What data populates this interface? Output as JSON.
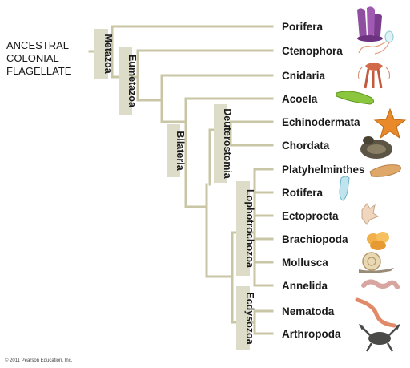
{
  "root": {
    "lines": [
      "ANCESTRAL",
      "COLONIAL",
      "FLAGELLATE"
    ]
  },
  "clades": {
    "metazoa": "Metazoa",
    "eumetazoa": "Eumetazoa",
    "bilateria": "Bilateria",
    "deuterostomia": "Deuterostomia",
    "lophotrochozoa": "Lophotrochozoa",
    "ecdysozoa": "Ecdysozoa"
  },
  "taxa": [
    "Porifera",
    "Ctenophora",
    "Cnidaria",
    "Acoela",
    "Echinodermata",
    "Chordata",
    "Platyhelminthes",
    "Rotifera",
    "Ectoprocta",
    "Brachiopoda",
    "Mollusca",
    "Annelida",
    "Nematoda",
    "Arthropoda"
  ],
  "icons": [
    "sponge-icon",
    "comb-jelly-icon",
    "jellyfish-icon",
    "acoel-flatworm-icon",
    "sea-star-icon",
    "snake-icon",
    "flatworm-icon",
    "rotifer-icon",
    "bryozoan-icon",
    "brachiopod-icon",
    "snail-icon",
    "earthworm-icon",
    "roundworm-icon",
    "lobster-icon"
  ],
  "colors": {
    "branch": "#c9c6a6",
    "clade_box": "#dcdcc8"
  },
  "copyright": "© 2011 Pearson Education, Inc."
}
